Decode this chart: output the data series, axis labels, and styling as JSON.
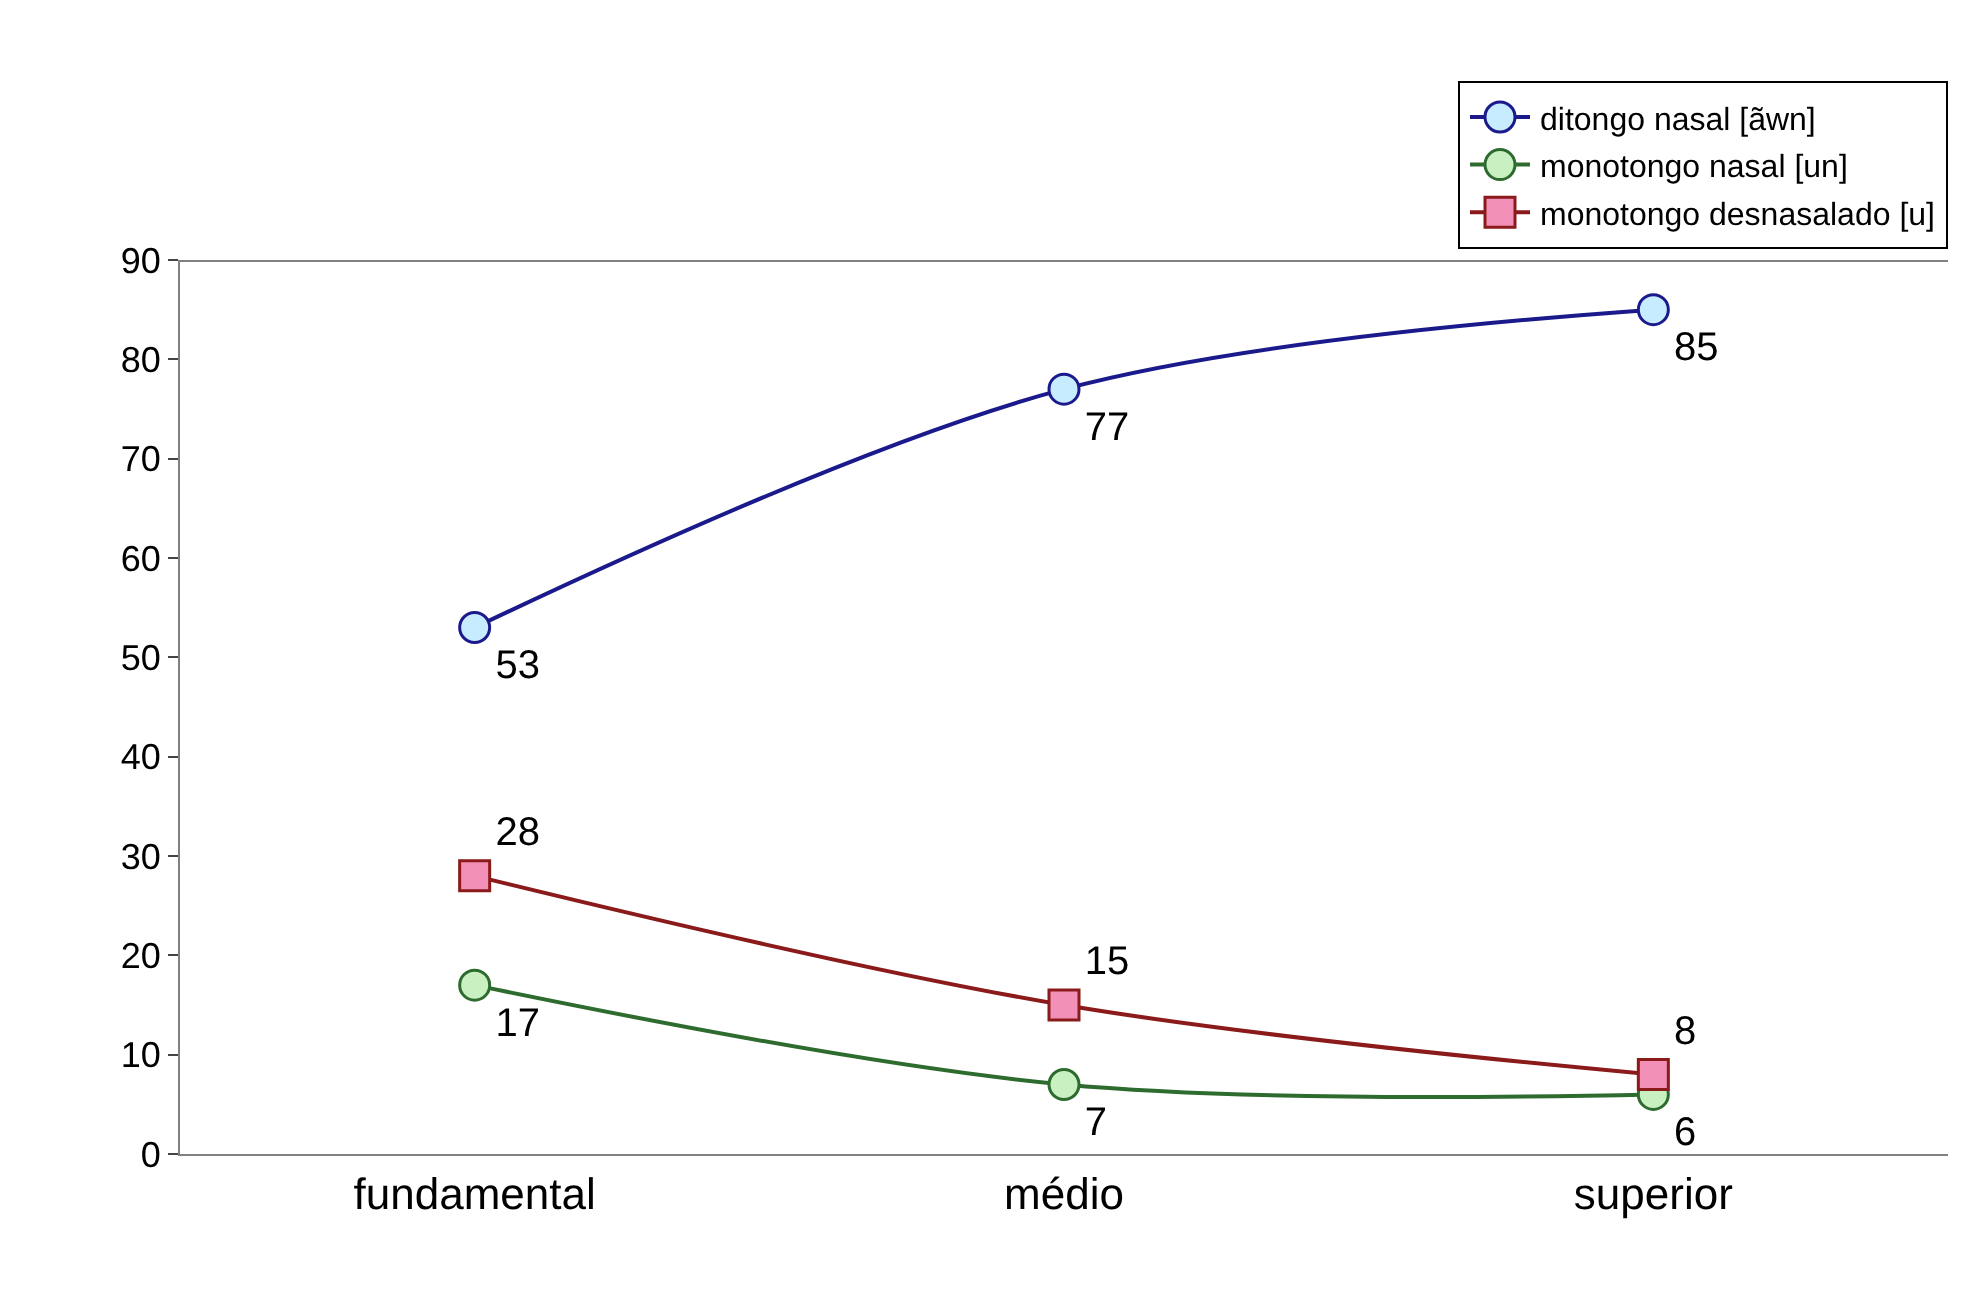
{
  "chart_data": {
    "type": "line",
    "categories": [
      "fundamental",
      "médio",
      "superior"
    ],
    "series": [
      {
        "name": "ditongo nasal [ãwn]",
        "color": "#1a1a8c",
        "marker": "circle",
        "values": [
          53,
          77,
          85
        ]
      },
      {
        "name": "monotongo nasal [un]",
        "color": "#2e6b2e",
        "marker": "circle",
        "values": [
          17,
          7,
          6
        ]
      },
      {
        "name": "monotongo desnasalado [u]",
        "color": "#8b1a1a",
        "marker": "square",
        "values": [
          28,
          15,
          8
        ]
      }
    ],
    "ylim": [
      0,
      90
    ],
    "yticks": [
      0,
      10,
      20,
      30,
      40,
      50,
      60,
      70,
      80,
      90
    ],
    "data_labels": true,
    "legend": "top right",
    "grid": false
  }
}
